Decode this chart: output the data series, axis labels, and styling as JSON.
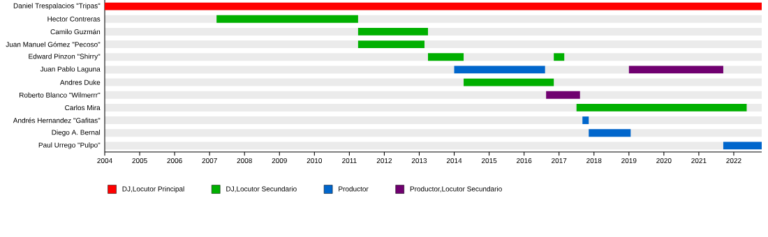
{
  "chart_data": {
    "type": "bar",
    "orientation": "horizontal",
    "categories": [
      "Daniel Trespalacios \"Tripas\"",
      "Hector Contreras",
      "Camilo Guzmán",
      "Juan Manuel Gómez \"Pecoso\"",
      "Edward Pinzon \"Shirry\"",
      "Juan Pablo Laguna",
      "Andres Duke",
      "Roberto Blanco \"Wilmerrr\"",
      "Carlos Mira",
      "Andrés Hernandez \"Gafitas\"",
      "Diego A. Bernal",
      "Paul Urrego \"Pulpo\""
    ],
    "series": [
      {
        "name": "DJ,Locutor Principal",
        "color": "#ff0000",
        "base": [
          2004,
          null,
          null,
          null,
          null,
          null,
          null,
          null,
          null,
          null,
          null,
          null
        ],
        "values": [
          18.8,
          null,
          null,
          null,
          null,
          null,
          null,
          null,
          null,
          null,
          null,
          null
        ]
      },
      {
        "name": "DJ,Locutor Secundario",
        "color": "#00b000",
        "base": [
          null,
          2007.2,
          2011.25,
          2011.25,
          2013.25,
          null,
          2014.27,
          null,
          2017.5,
          null,
          null,
          null
        ],
        "values": [
          null,
          4.05,
          2.0,
          1.9,
          1.02,
          null,
          2.58,
          null,
          4.87,
          null,
          null,
          null
        ]
      },
      {
        "color": "#00b000",
        "base": [
          null,
          null,
          null,
          null,
          2016.85,
          null,
          null,
          null,
          null,
          null,
          null,
          null
        ],
        "values": [
          null,
          null,
          null,
          null,
          0.3,
          null,
          null,
          null,
          null,
          null,
          null,
          null
        ]
      },
      {
        "name": "Productor",
        "color": "#0066cc",
        "base": [
          null,
          null,
          null,
          null,
          null,
          2014.0,
          null,
          null,
          null,
          2017.67,
          2017.85,
          2021.7
        ],
        "values": [
          null,
          null,
          null,
          null,
          null,
          2.6,
          null,
          null,
          null,
          0.18,
          1.2,
          1.1
        ]
      },
      {
        "name": "Productor,Locutor Secundario",
        "color": "#700070",
        "base": [
          null,
          null,
          null,
          null,
          null,
          2019.0,
          null,
          2016.63,
          null,
          null,
          null,
          null
        ],
        "values": [
          null,
          null,
          null,
          null,
          null,
          2.7,
          null,
          0.97,
          null,
          null,
          null,
          null
        ]
      }
    ],
    "xlim": [
      2004,
      2022.8
    ],
    "xticks": [
      2004,
      2005,
      2006,
      2007,
      2008,
      2009,
      2010,
      2011,
      2012,
      2013,
      2014,
      2015,
      2016,
      2017,
      2018,
      2019,
      2020,
      2021,
      2022
    ],
    "grid": "y",
    "legend": "bottom left"
  }
}
